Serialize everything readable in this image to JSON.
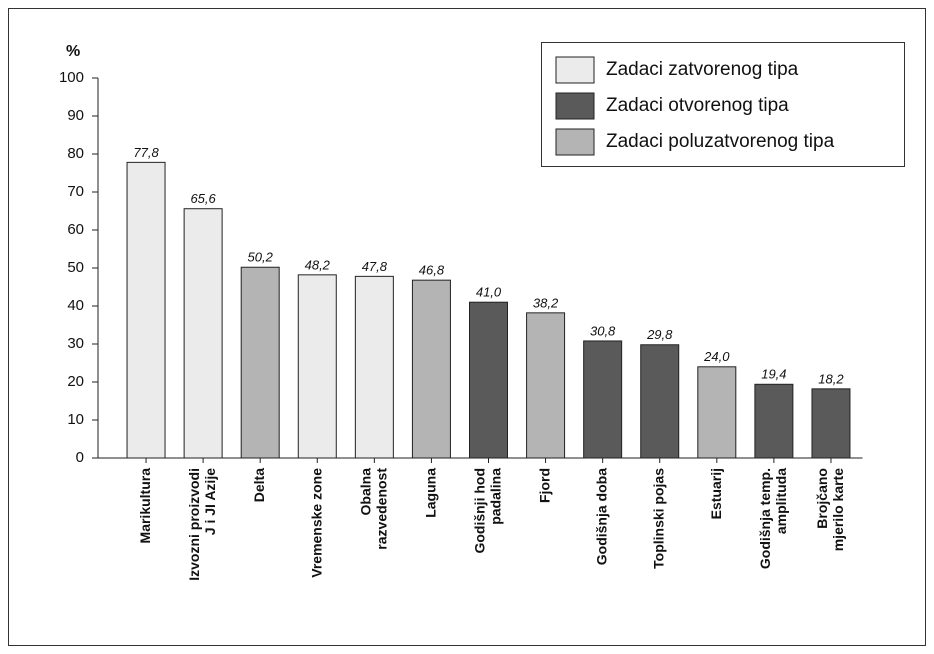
{
  "chart_data": {
    "type": "bar",
    "y_label": "%",
    "categories": [
      "Marikultura",
      "Izvozni proizvodi\nJ i JI Azije",
      "Delta",
      "Vremenske zone",
      "Obalna\nrazvedenost",
      "Laguna",
      "Godišnji hod\npadalina",
      "Fjord",
      "Godišnja doba",
      "Toplinski pojas",
      "Estuarij",
      "Godišnja temp.\namplituda",
      "Brojčano\nmjerilo karte"
    ],
    "series": [
      {
        "name": "Zadaci zatvorenog tipa",
        "color": "#ebebeb",
        "values": [
          77.8,
          65.6,
          null,
          48.2,
          47.8,
          null,
          null,
          null,
          null,
          null,
          null,
          null,
          null
        ],
        "value_labels": [
          "77,8",
          "65,6",
          null,
          "48,2",
          "47,8",
          null,
          null,
          null,
          null,
          null,
          null,
          null,
          null
        ]
      },
      {
        "name": "Zadaci otvorenog tipa",
        "color": "#5a5a5a",
        "values": [
          null,
          null,
          null,
          null,
          null,
          null,
          41.0,
          null,
          30.8,
          29.8,
          null,
          19.4,
          18.2
        ],
        "value_labels": [
          null,
          null,
          null,
          null,
          null,
          null,
          "41,0",
          null,
          "30,8",
          "29,8",
          null,
          "19,4",
          "18,2"
        ]
      },
      {
        "name": "Zadaci poluzatvorenog tipa",
        "color": "#b4b4b4",
        "values": [
          null,
          null,
          50.2,
          null,
          null,
          46.8,
          null,
          38.2,
          null,
          null,
          24.0,
          null,
          null
        ],
        "value_labels": [
          null,
          null,
          "50,2",
          null,
          null,
          "46,8",
          null,
          "38,2",
          null,
          null,
          "24,0",
          null,
          null
        ]
      }
    ],
    "ylim": [
      0,
      100
    ],
    "yticks": [
      0,
      10,
      20,
      30,
      40,
      50,
      60,
      70,
      80,
      90,
      100
    ],
    "legend": "top-right"
  }
}
